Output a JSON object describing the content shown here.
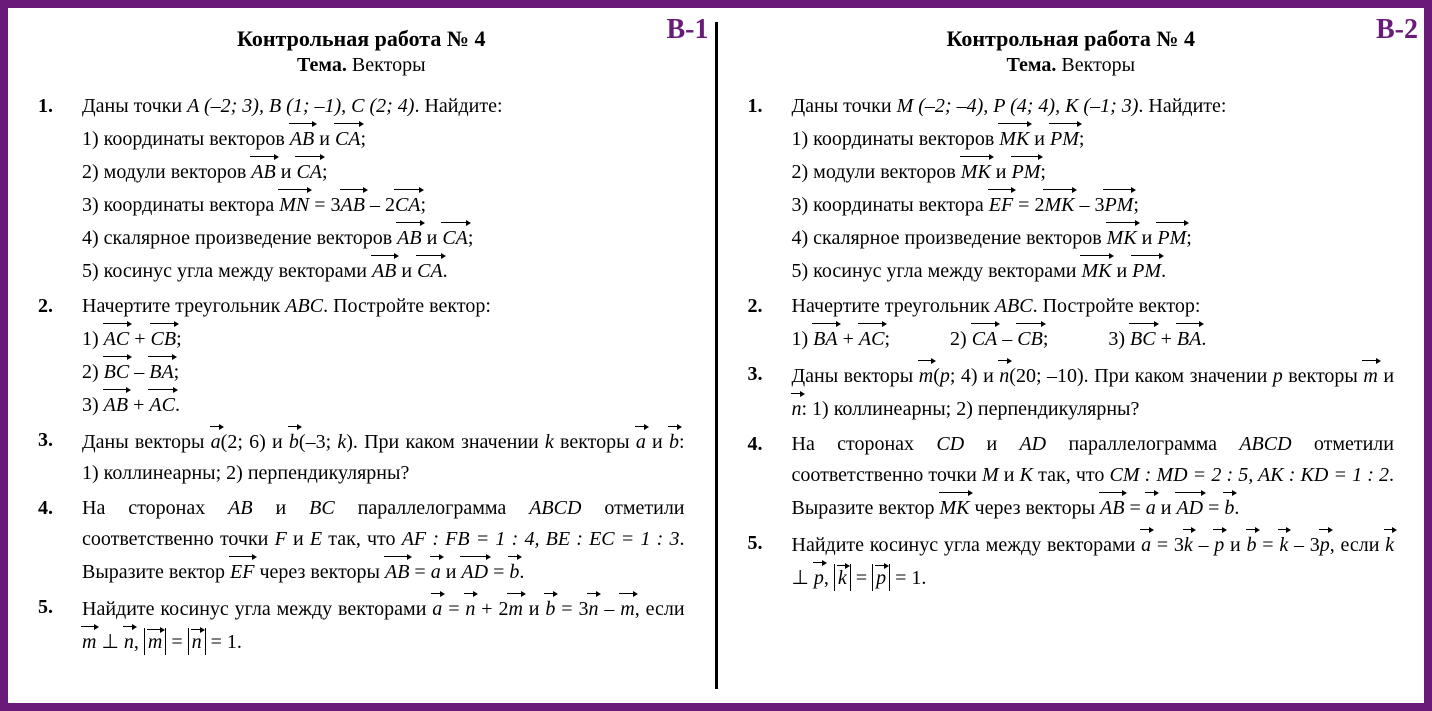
{
  "border_color": "#6a1b7a",
  "background_color": "#ffffff",
  "variant_color": "#6a1b7a",
  "font_family": "Georgia, Times New Roman, serif",
  "base_fontsize": 20,
  "title_fontsize": 22,
  "variant_fontsize": 28,
  "left": {
    "variant": "В-1",
    "title": "Контрольная работа № 4",
    "subtitle_bold": "Тема.",
    "subtitle_rest": " Векторы",
    "p1": {
      "intro_a": "Даны точки ",
      "pts": "A (–2; 3), B (1; –1), C (2; 4)",
      "intro_b": ". Найдите:",
      "s1a": "1) координаты векторов ",
      "v1": "AB",
      "and": " и ",
      "v2": "CA",
      "end": ";",
      "s2a": "2) модули векторов ",
      "s3a": "3) координаты вектора ",
      "mn": "MN",
      "eq": " = 3",
      "minus": " – 2",
      "s4a": "4) скалярное произведение векторов ",
      "s5a": "5) косинус угла между векторами ",
      "dot": "."
    },
    "p2": {
      "intro": "Начертите треугольник ",
      "tri": "ABC",
      "intro2": ". Постройте вектор:",
      "s1": "1) ",
      "v11": "AC",
      "plus": " + ",
      "v12": "CB",
      "end": ";",
      "s2": "2) ",
      "v21": "BC",
      "minus": " – ",
      "v22": "BA",
      "s3": "3) ",
      "v31": "AB",
      "v32": "AC",
      "dot": "."
    },
    "p3": {
      "t1": "Даны векторы ",
      "a": "a",
      "ap": "(2; 6) и ",
      "b": "b",
      "bp": "(–3; ",
      "k": "k",
      "t2": "). При каком значении ",
      "k2": "k",
      "t3": " векторы ",
      "and": " и ",
      "t4": ": 1) коллинеарны; 2) перпендикулярны?"
    },
    "p4": {
      "t1": "На сторонах ",
      "ab": "AB",
      "and": " и ",
      "bc": "BC",
      "t2": " параллелограмма ",
      "abcd": "ABCD",
      "t3": " отметили соответственно точки ",
      "f": "F",
      "e": "E",
      "t4": " так, что ",
      "r1": "AF : FB = 1 : 4, ",
      "r2": "BE : EC = 1 : 3",
      "t5": ". Выразите вектор ",
      "ef": "EF",
      "t6": " через векторы ",
      "eq": " = ",
      "a": "a",
      "b": "b",
      "ad": "AD",
      "dot": "."
    },
    "p5": {
      "t1": "Найдите косинус угла между векторами ",
      "a": "a",
      "eq": " = ",
      "n": "n",
      "plus": " + 2",
      "m": "m",
      "and": " и ",
      "b": "b",
      "eq2": " = 3",
      "minus": " – ",
      "t2": ", если ",
      "perp": " ⊥ ",
      "comma": ", ",
      "eqone": " = 1."
    }
  },
  "right": {
    "variant": "В-2",
    "title": "Контрольная работа № 4",
    "subtitle_bold": "Тема.",
    "subtitle_rest": " Векторы",
    "p1": {
      "intro_a": "Даны точки ",
      "pts": "M (–2; –4), P (4; 4), K (–1; 3)",
      "intro_b": ". Найдите:",
      "s1a": "1) координаты векторов ",
      "v1": "MK",
      "and": " и ",
      "v2": "PM",
      "end": ";",
      "s2a": "2) модули векторов ",
      "s3a": "3) координаты вектора ",
      "ef": "EF",
      "eq": " = 2",
      "minus": " – 3",
      "s4a": "4) скалярное произведение векторов ",
      "s5a": "5) косинус угла между векторами ",
      "dot": "."
    },
    "p2": {
      "intro": "Начертите треугольник ",
      "tri": "ABC",
      "intro2": ". Постройте вектор:",
      "s1": "1) ",
      "v11": "BA",
      "plus": " + ",
      "v12": "AC",
      "end": ";",
      "s2": "2) ",
      "v21": "CA",
      "minus": " – ",
      "v22": "CB",
      "s3": "3) ",
      "v31": "BC",
      "v32": "BA",
      "dot": "."
    },
    "p3": {
      "t1": "Даны векторы ",
      "m": "m",
      "mp": "(",
      "p": "p",
      "mp2": "; 4) и ",
      "n": "n",
      "np": "(20; –10). При каком значении ",
      "p2": "p",
      "t3": " векторы ",
      "and": " и ",
      "t4": ": 1) коллинеарны; 2) перпендикулярны?"
    },
    "p4": {
      "t1": "На сторонах ",
      "cd": "CD",
      "and": " и ",
      "ad": "AD",
      "t2": " параллелограмма ",
      "abcd": "ABCD",
      "t3": " отметили соответственно точки ",
      "mm": "M",
      "kk": "K",
      "t4": " так, что ",
      "r1": "CM : MD = 2 : 5, ",
      "r2": "AK : KD = 1 : 2",
      "t5": ". Выразите вектор ",
      "mk": "MK",
      "t6": " через векторы ",
      "ab": "AB",
      "eq": " = ",
      "a": "a",
      "b": "b",
      "dot": "."
    },
    "p5": {
      "t1": "Найдите косинус угла между векторами ",
      "a": "a",
      "eq": " = 3",
      "k": "k",
      "minus": " – ",
      "p": "p",
      "and": " и ",
      "b": "b",
      "eq2": " = ",
      "minus3": " – 3",
      "t2": ", если ",
      "perp": " ⊥ ",
      "comma": ", ",
      "eqone": " = 1."
    }
  }
}
